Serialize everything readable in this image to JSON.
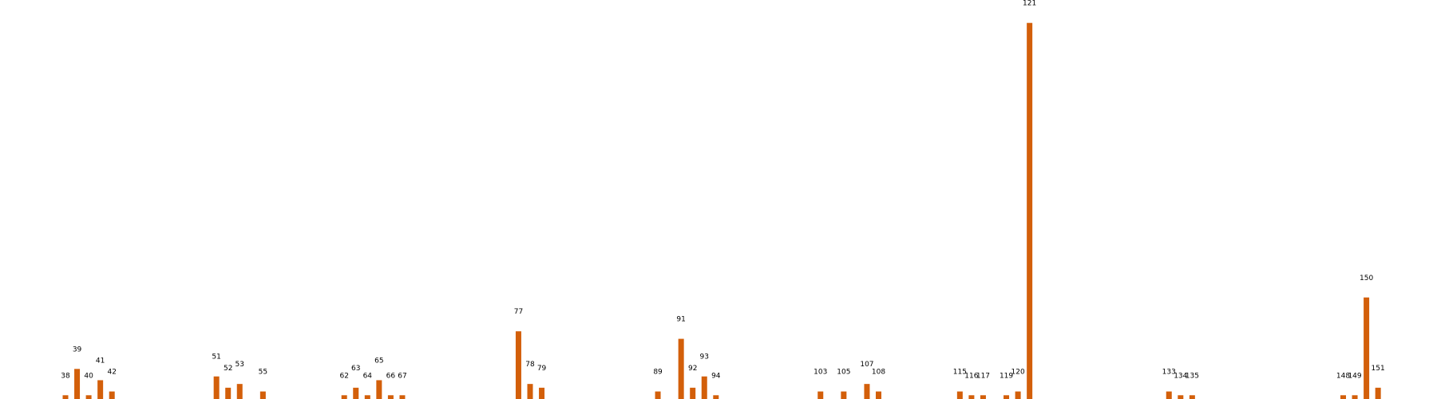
{
  "chart_data": {
    "type": "bar",
    "title": "",
    "xlabel": "",
    "ylabel": "",
    "grid": false,
    "bar_color": "#d35f0a",
    "x_range": [
      31,
      158
    ],
    "ylim": [
      0,
      101
    ],
    "bars": [
      {
        "label": "38",
        "x": 38,
        "value": 1
      },
      {
        "label": "39",
        "x": 39,
        "value": 8
      },
      {
        "label": "40",
        "x": 40,
        "value": 1
      },
      {
        "label": "41",
        "x": 41,
        "value": 5
      },
      {
        "label": "42",
        "x": 42,
        "value": 2
      },
      {
        "label": "51",
        "x": 51,
        "value": 6
      },
      {
        "label": "52",
        "x": 52,
        "value": 3
      },
      {
        "label": "53",
        "x": 53,
        "value": 4
      },
      {
        "label": "55",
        "x": 55,
        "value": 2
      },
      {
        "label": "62",
        "x": 62,
        "value": 1
      },
      {
        "label": "63",
        "x": 63,
        "value": 3
      },
      {
        "label": "64",
        "x": 64,
        "value": 1
      },
      {
        "label": "65",
        "x": 65,
        "value": 5
      },
      {
        "label": "66",
        "x": 66,
        "value": 1
      },
      {
        "label": "67",
        "x": 67,
        "value": 1
      },
      {
        "label": "77",
        "x": 77,
        "value": 18
      },
      {
        "label": "78",
        "x": 78,
        "value": 4
      },
      {
        "label": "79",
        "x": 79,
        "value": 3
      },
      {
        "label": "89",
        "x": 89,
        "value": 2
      },
      {
        "label": "91",
        "x": 91,
        "value": 16
      },
      {
        "label": "92",
        "x": 92,
        "value": 3
      },
      {
        "label": "93",
        "x": 93,
        "value": 6
      },
      {
        "label": "94",
        "x": 94,
        "value": 1
      },
      {
        "label": "103",
        "x": 103,
        "value": 2
      },
      {
        "label": "105",
        "x": 105,
        "value": 2
      },
      {
        "label": "107",
        "x": 107,
        "value": 4
      },
      {
        "label": "108",
        "x": 108,
        "value": 2
      },
      {
        "label": "115",
        "x": 115,
        "value": 2
      },
      {
        "label": "116",
        "x": 116,
        "value": 1
      },
      {
        "label": "117",
        "x": 117,
        "value": 1
      },
      {
        "label": "119",
        "x": 119,
        "value": 1
      },
      {
        "label": "120",
        "x": 120,
        "value": 2
      },
      {
        "label": "121",
        "x": 121,
        "value": 100
      },
      {
        "label": "133",
        "x": 133,
        "value": 2
      },
      {
        "label": "134",
        "x": 134,
        "value": 1
      },
      {
        "label": "135",
        "x": 135,
        "value": 1
      },
      {
        "label": "148",
        "x": 148,
        "value": 1
      },
      {
        "label": "149",
        "x": 149,
        "value": 1
      },
      {
        "label": "150",
        "x": 150,
        "value": 27
      },
      {
        "label": "151",
        "x": 151,
        "value": 3
      }
    ]
  }
}
